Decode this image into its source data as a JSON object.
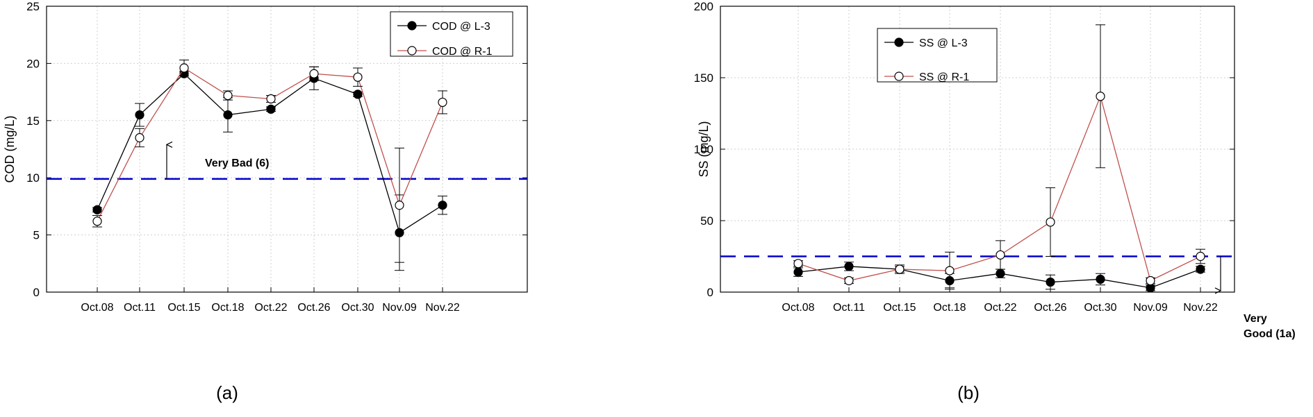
{
  "chart_data": [
    {
      "type": "line",
      "panel_label": "(a)",
      "ylabel": "COD (mg/L)",
      "xlabel": "",
      "ylim": [
        0,
        25
      ],
      "yticks": [
        0,
        5,
        10,
        15,
        20,
        25
      ],
      "grid": true,
      "legend_position": "top-right",
      "categories": [
        "Oct.08",
        "Oct.11",
        "Oct.15",
        "Oct.18",
        "Oct.22",
        "Oct.26",
        "Oct.30",
        "Nov.09",
        "Nov.22"
      ],
      "series": [
        {
          "name": "COD @ L-3",
          "marker": "filled-circle",
          "color": "#000000",
          "values": [
            7.2,
            15.5,
            19.1,
            15.5,
            16.0,
            18.7,
            17.3,
            5.2,
            7.6
          ],
          "errors": [
            0.2,
            1.0,
            0.2,
            1.5,
            0.2,
            1.0,
            0.2,
            3.3,
            0.8
          ]
        },
        {
          "name": "COD @ R-1",
          "marker": "open-circle",
          "color": "#c0504d",
          "values": [
            6.2,
            13.5,
            19.6,
            17.2,
            16.9,
            19.1,
            18.8,
            7.6,
            16.6
          ],
          "errors": [
            0.5,
            0.8,
            0.7,
            0.4,
            0.3,
            0.6,
            0.8,
            5.0,
            1.0
          ]
        }
      ],
      "threshold": {
        "value": 9.9,
        "color": "#0000cc"
      },
      "annotation": {
        "text": "Very Bad (6)",
        "arrow_from": 9.9,
        "arrow_to": 12.9
      }
    },
    {
      "type": "line",
      "panel_label": "(b)",
      "ylabel": "SS (mg/L)",
      "xlabel": "",
      "ylim": [
        0,
        200
      ],
      "yticks": [
        0,
        50,
        100,
        150,
        200
      ],
      "grid": true,
      "legend_position": "top-left",
      "categories": [
        "Oct.08",
        "Oct.11",
        "Oct.15",
        "Oct.18",
        "Oct.22",
        "Oct.26",
        "Oct.30",
        "Nov.09",
        "Nov.22"
      ],
      "series": [
        {
          "name": "SS @ L-3",
          "marker": "filled-circle",
          "color": "#000000",
          "values": [
            14,
            18,
            16,
            8,
            13,
            7,
            9,
            3,
            16
          ],
          "errors": [
            3,
            3,
            3,
            5,
            3,
            5,
            4,
            2,
            2
          ]
        },
        {
          "name": "SS @ R-1",
          "marker": "open-circle",
          "color": "#c0504d",
          "values": [
            20,
            8,
            16,
            15,
            26,
            49,
            137,
            8,
            25
          ],
          "errors": [
            2,
            2,
            2,
            13,
            10,
            24,
            50,
            2,
            5
          ]
        }
      ],
      "threshold": {
        "value": 25,
        "color": "#0000cc"
      },
      "annotation": {
        "text_lines": [
          "Very",
          "Good (1a)"
        ],
        "arrow_from": 25,
        "arrow_to": 1
      }
    }
  ]
}
